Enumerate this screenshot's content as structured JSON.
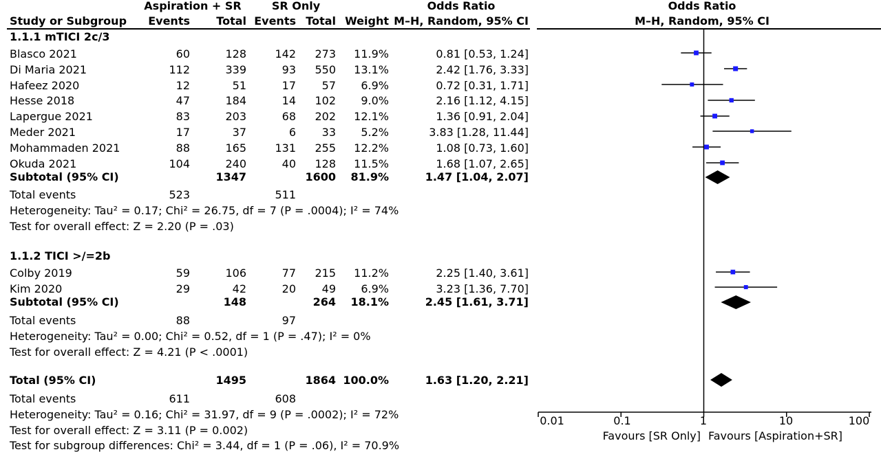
{
  "header": {
    "group1": "Aspiration + SR",
    "group2": "SR Only",
    "col_study": "Study or Subgroup",
    "col_events1": "Events",
    "col_total1": "Total",
    "col_events2": "Events",
    "col_total2": "Total",
    "col_weight": "Weight",
    "col_or": "Odds Ratio",
    "col_method": "M–H, Random, 95% CI",
    "plot_title": "Odds Ratio",
    "plot_method": "M–H, Random, 95% CI"
  },
  "subgroups": [
    {
      "title": "1.1.1 mTICI 2c/3",
      "studies": [
        {
          "name": "Blasco 2021",
          "e1": "60",
          "t1": "128",
          "e2": "142",
          "t2": "273",
          "weight": "11.9%",
          "ci": "0.81 [0.53, 1.24]"
        },
        {
          "name": "Di Maria 2021",
          "e1": "112",
          "t1": "339",
          "e2": "93",
          "t2": "550",
          "weight": "13.1%",
          "ci": "2.42 [1.76, 3.33]"
        },
        {
          "name": "Hafeez 2020",
          "e1": "12",
          "t1": "51",
          "e2": "17",
          "t2": "57",
          "weight": "6.9%",
          "ci": "0.72 [0.31, 1.71]"
        },
        {
          "name": "Hesse 2018",
          "e1": "47",
          "t1": "184",
          "e2": "14",
          "t2": "102",
          "weight": "9.0%",
          "ci": "2.16 [1.12, 4.15]"
        },
        {
          "name": "Lapergue 2021",
          "e1": "83",
          "t1": "203",
          "e2": "68",
          "t2": "202",
          "weight": "12.1%",
          "ci": "1.36 [0.91, 2.04]"
        },
        {
          "name": "Meder 2021",
          "e1": "17",
          "t1": "37",
          "e2": "6",
          "t2": "33",
          "weight": "5.2%",
          "ci": "3.83 [1.28, 11.44]"
        },
        {
          "name": "Mohammaden 2021",
          "e1": "88",
          "t1": "165",
          "e2": "131",
          "t2": "255",
          "weight": "12.2%",
          "ci": "1.08 [0.73, 1.60]"
        },
        {
          "name": "Okuda 2021",
          "e1": "104",
          "t1": "240",
          "e2": "40",
          "t2": "128",
          "weight": "11.5%",
          "ci": "1.68 [1.07, 2.65]"
        }
      ],
      "subtotal": {
        "label": "Subtotal (95% CI)",
        "t1": "1347",
        "t2": "1600",
        "weight": "81.9%",
        "ci": "1.47 [1.04, 2.07]"
      },
      "total_events": {
        "label": "Total events",
        "e1": "523",
        "e2": "511"
      },
      "heterogeneity": "Heterogeneity: Tau² = 0.17; Chi² = 26.75, df = 7 (P = .0004); I² = 74%",
      "overall": "Test for overall effect: Z = 2.20 (P = .03)"
    },
    {
      "title": "1.1.2 TICI >/=2b",
      "studies": [
        {
          "name": "Colby 2019",
          "e1": "59",
          "t1": "106",
          "e2": "77",
          "t2": "215",
          "weight": "11.2%",
          "ci": "2.25 [1.40, 3.61]"
        },
        {
          "name": "Kim 2020",
          "e1": "29",
          "t1": "42",
          "e2": "20",
          "t2": "49",
          "weight": "6.9%",
          "ci": "3.23 [1.36, 7.70]"
        }
      ],
      "subtotal": {
        "label": "Subtotal (95% CI)",
        "t1": "148",
        "t2": "264",
        "weight": "18.1%",
        "ci": "2.45 [1.61, 3.71]"
      },
      "total_events": {
        "label": "Total events",
        "e1": "88",
        "e2": "97"
      },
      "heterogeneity": "Heterogeneity: Tau² = 0.00; Chi² = 0.52, df = 1 (P = .47); I² = 0%",
      "overall": "Test for overall effect: Z = 4.21 (P < .0001)"
    }
  ],
  "total": {
    "label": "Total (95% CI)",
    "t1": "1495",
    "t2": "1864",
    "weight": "100.0%",
    "ci": "1.63 [1.20, 2.21]"
  },
  "total_events": {
    "label": "Total events",
    "e1": "611",
    "e2": "608"
  },
  "total_heterogeneity": "Heterogeneity: Tau² = 0.16; Chi² = 31.97, df = 9 (P = .0002); I² = 72%",
  "total_overall": "Test for overall effect: Z = 3.11 (P = 0.002)",
  "subgroup_diff": "Test for subgroup differences: Chi² = 3.44, df = 1 (P = .06), I² = 70.9%",
  "axis": {
    "ticks": [
      "0.01",
      "0.1",
      "1",
      "10",
      "100"
    ],
    "favours_left": "Favours [SR Only]",
    "favours_right": "Favours [Aspiration+SR]"
  },
  "chart_data": {
    "type": "forest",
    "x_scale": "log",
    "xlim": [
      0.01,
      100
    ],
    "reference_line": 1,
    "marker_color": "#1a1aff",
    "studies": [
      {
        "name": "Blasco 2021",
        "or": 0.81,
        "lo": 0.53,
        "hi": 1.24,
        "weight": 11.9
      },
      {
        "name": "Di Maria 2021",
        "or": 2.42,
        "lo": 1.76,
        "hi": 3.33,
        "weight": 13.1
      },
      {
        "name": "Hafeez 2020",
        "or": 0.72,
        "lo": 0.31,
        "hi": 1.71,
        "weight": 6.9
      },
      {
        "name": "Hesse 2018",
        "or": 2.16,
        "lo": 1.12,
        "hi": 4.15,
        "weight": 9.0
      },
      {
        "name": "Lapergue 2021",
        "or": 1.36,
        "lo": 0.91,
        "hi": 2.04,
        "weight": 12.1
      },
      {
        "name": "Meder 2021",
        "or": 3.83,
        "lo": 1.28,
        "hi": 11.44,
        "weight": 5.2
      },
      {
        "name": "Mohammaden 2021",
        "or": 1.08,
        "lo": 0.73,
        "hi": 1.6,
        "weight": 12.2
      },
      {
        "name": "Okuda 2021",
        "or": 1.68,
        "lo": 1.07,
        "hi": 2.65,
        "weight": 11.5
      },
      {
        "name": "Colby 2019",
        "or": 2.25,
        "lo": 1.4,
        "hi": 3.61,
        "weight": 11.2
      },
      {
        "name": "Kim 2020",
        "or": 3.23,
        "lo": 1.36,
        "hi": 7.7,
        "weight": 6.9
      }
    ],
    "pooled": [
      {
        "name": "Subtotal 1.1.1",
        "or": 1.47,
        "lo": 1.04,
        "hi": 2.07
      },
      {
        "name": "Subtotal 1.1.2",
        "or": 2.45,
        "lo": 1.61,
        "hi": 3.71
      },
      {
        "name": "Total",
        "or": 1.63,
        "lo": 1.2,
        "hi": 2.21
      }
    ]
  }
}
